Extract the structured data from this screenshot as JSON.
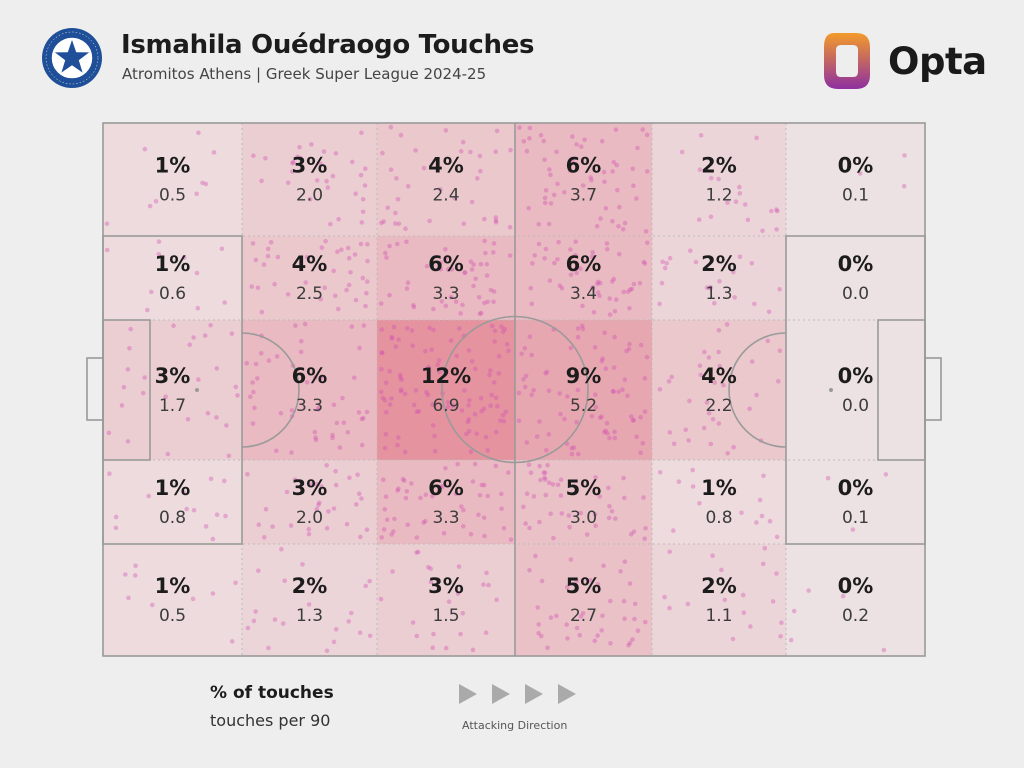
{
  "header": {
    "title": "Ismahila Ouédraogo Touches",
    "subtitle": "Atromitos Athens | Greek Super League 2024-25",
    "badge_text_top": "ΑΤΡΟΜΗΤΟΣ ΑΘΗΝΩΝ",
    "badge_text_bottom": "1923",
    "brand": "Opta"
  },
  "legend": {
    "pct_label": "% of touches",
    "p90_label": "touches per 90",
    "direction_label": "Attacking Direction"
  },
  "colors": {
    "background": "#eeeeee",
    "pitch_line": "#9a9a9a",
    "zone_fill": "#dc5a6e",
    "dot": "#d24fb4",
    "badge_blue": "#1f4f98",
    "opta_orange": "#f39a2b",
    "opta_purple": "#8e2fa0"
  },
  "chart_data": {
    "type": "heatmap",
    "rows": 5,
    "cols": 6,
    "percent_of_touches": [
      [
        "1%",
        "3%",
        "4%",
        "6%",
        "2%",
        "0%"
      ],
      [
        "1%",
        "4%",
        "6%",
        "6%",
        "2%",
        "0%"
      ],
      [
        "3%",
        "6%",
        "12%",
        "9%",
        "4%",
        "0%"
      ],
      [
        "1%",
        "3%",
        "6%",
        "5%",
        "1%",
        "0%"
      ],
      [
        "1%",
        "2%",
        "3%",
        "5%",
        "2%",
        "0%"
      ]
    ],
    "touches_per_90": [
      [
        "0.5",
        "2.0",
        "2.4",
        "3.7",
        "1.2",
        "0.1"
      ],
      [
        "0.6",
        "2.5",
        "3.3",
        "3.4",
        "1.3",
        "0.0"
      ],
      [
        "1.7",
        "3.3",
        "6.9",
        "5.2",
        "2.2",
        "0.0"
      ],
      [
        "0.8",
        "2.0",
        "3.3",
        "3.0",
        "0.8",
        "0.1"
      ],
      [
        "0.5",
        "1.3",
        "1.5",
        "2.7",
        "1.1",
        "0.2"
      ]
    ]
  }
}
